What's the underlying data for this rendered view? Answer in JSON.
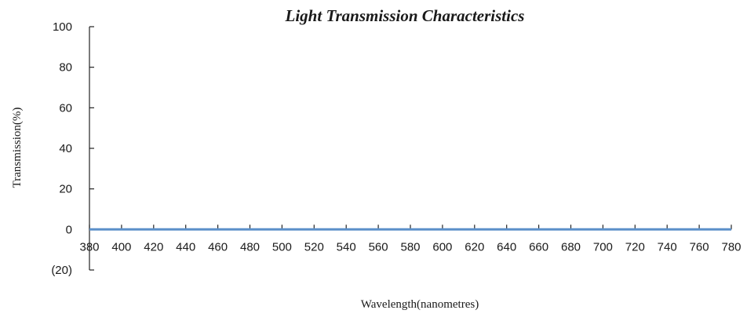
{
  "chart_data": {
    "type": "line",
    "title": "Light Transmission Characteristics",
    "xlabel": "Wavelength(nanometres)",
    "ylabel": "Transmission(%)",
    "xlim": [
      380,
      780
    ],
    "ylim": [
      -20,
      100
    ],
    "x_ticks": [
      380,
      400,
      420,
      440,
      460,
      480,
      500,
      520,
      540,
      560,
      580,
      600,
      620,
      640,
      660,
      680,
      700,
      720,
      740,
      760,
      780
    ],
    "y_ticks": [
      100,
      80,
      60,
      40,
      20,
      0,
      -20
    ],
    "y_tick_labels": [
      "100",
      "80",
      "60",
      "40",
      "20",
      "0",
      "(20)"
    ],
    "grid": false,
    "series_color": "#5b8fc9",
    "series": [
      {
        "x": [
          380,
          400,
          420,
          440,
          460,
          480,
          500,
          520,
          540,
          560,
          580,
          600,
          620,
          640,
          660,
          680,
          700,
          720,
          740,
          760,
          780
        ],
        "values": [
          0,
          0,
          0,
          0,
          0,
          0,
          0,
          0,
          0,
          0,
          0,
          0,
          0,
          0,
          0,
          0,
          0,
          0,
          0,
          0,
          0
        ]
      }
    ]
  }
}
